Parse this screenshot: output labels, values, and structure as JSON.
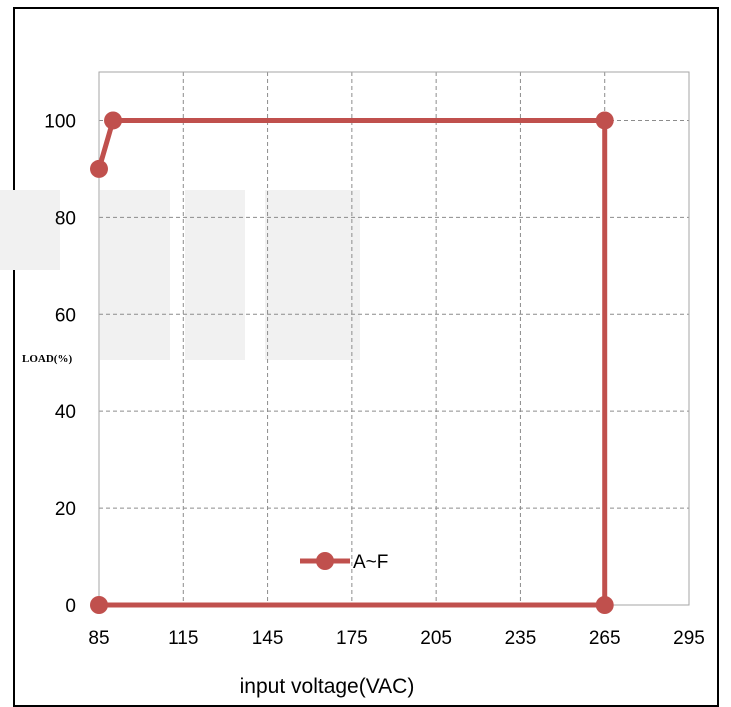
{
  "chart_data": {
    "type": "line",
    "title": "",
    "xlabel": "input voltage(VAC)",
    "ylabel": "LOAD(%)",
    "xlim": [
      85,
      295
    ],
    "ylim": [
      0,
      110
    ],
    "x_ticks": [
      "85",
      "115",
      "145",
      "175",
      "205",
      "235",
      "265",
      "295"
    ],
    "y_ticks": [
      "0",
      "20",
      "40",
      "60",
      "80",
      "100"
    ],
    "grid": true,
    "legend_position": "bottom-center",
    "series": [
      {
        "name": "A~F",
        "color": "#c0504d",
        "points": [
          {
            "x": 85,
            "y": 90
          },
          {
            "x": 90,
            "y": 100
          },
          {
            "x": 265,
            "y": 100
          },
          {
            "x": 265,
            "y": 0
          },
          {
            "x": 85,
            "y": 0
          }
        ]
      }
    ]
  }
}
